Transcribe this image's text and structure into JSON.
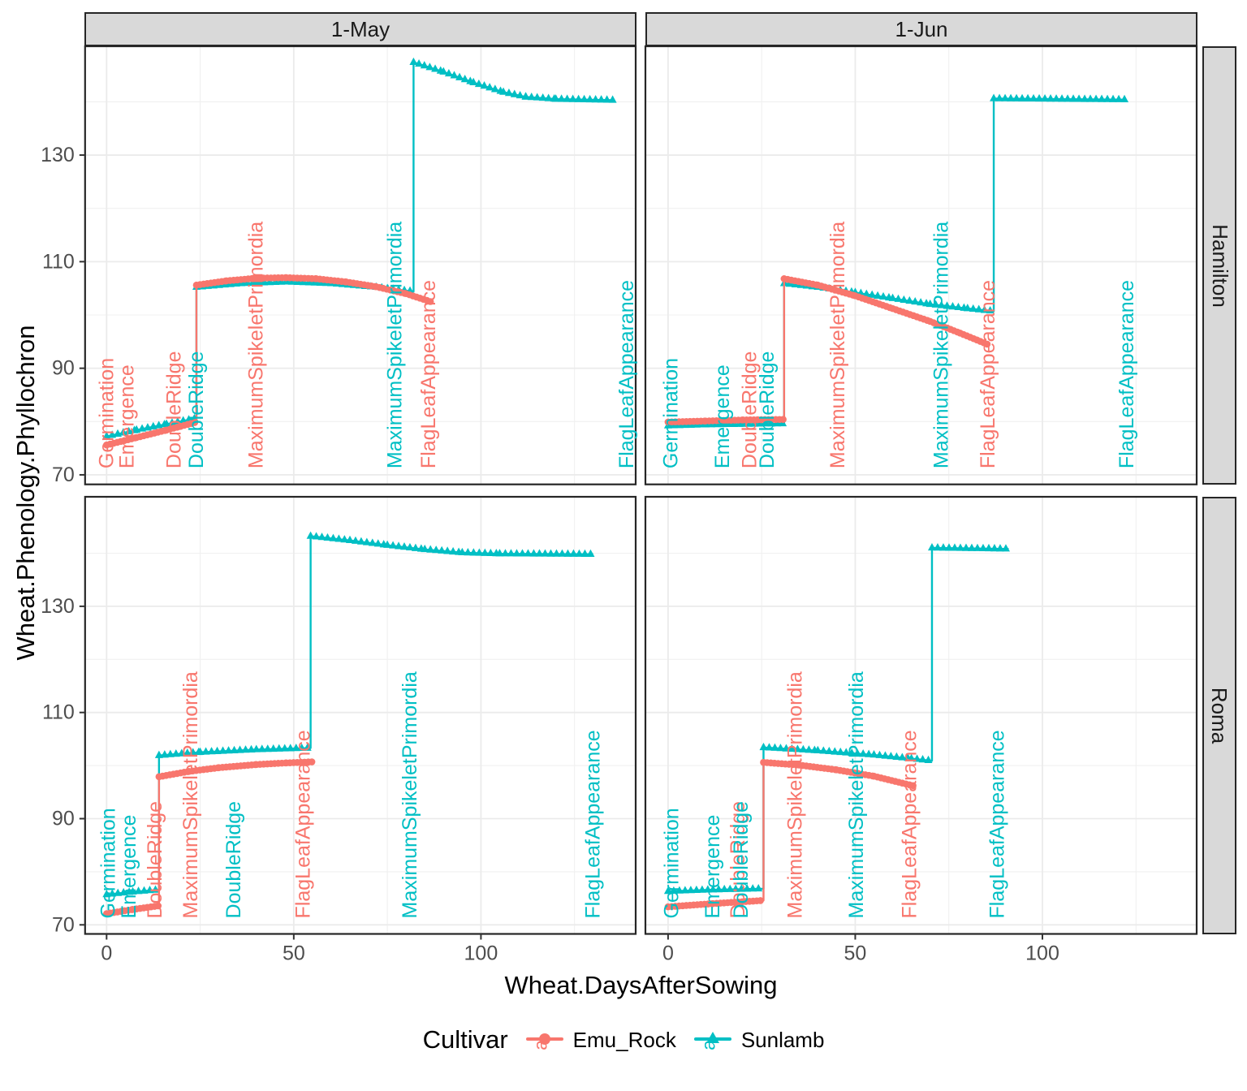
{
  "chart_data": {
    "type": "line",
    "xlabel": "Wheat.DaysAfterSowing",
    "ylabel": "Wheat.Phenology.Phyllochron",
    "facets": {
      "col_labels": [
        "1-May",
        "1-Jun"
      ],
      "row_labels": [
        "Hamilton",
        "Roma"
      ]
    },
    "axes": {
      "x_ticks": [
        0,
        50,
        100
      ],
      "x_minor": [
        25,
        75,
        125
      ],
      "y_ticks": [
        70,
        90,
        110,
        130
      ],
      "y_minor": [
        80,
        100,
        120,
        140
      ],
      "x_range": [
        -5.8,
        141.3
      ],
      "y_range": [
        68.2,
        150.5
      ],
      "grid": true
    },
    "legend": {
      "title": "Cultivar",
      "key_char": "a",
      "entries": [
        {
          "name": "Emu_Rock",
          "color": "#F8766D",
          "marker": "circle"
        },
        {
          "name": "Sunlamb",
          "color": "#00BFC4",
          "marker": "triangle"
        }
      ]
    },
    "panels": [
      {
        "id": "hamilton-1-may",
        "col": 0,
        "row": 0,
        "series": [
          {
            "cultivar": "Sunlamb",
            "points": [
              [
                0,
                77.2
              ],
              [
                8,
                78.4
              ],
              [
                16,
                79.5
              ],
              [
                24,
                80.6
              ],
              [
                24,
                105.2
              ],
              [
                36,
                105.9
              ],
              [
                48,
                106.2
              ],
              [
                60,
                105.9
              ],
              [
                72,
                105.2
              ],
              [
                82,
                104.4
              ],
              [
                82,
                147.4
              ],
              [
                90,
                145.6
              ],
              [
                98,
                143.6
              ],
              [
                106,
                141.8
              ],
              [
                112,
                140.9
              ],
              [
                120,
                140.5
              ],
              [
                135.5,
                140.3
              ]
            ]
          },
          {
            "cultivar": "Emu_Rock",
            "points": [
              [
                0,
                75.6
              ],
              [
                8,
                77.0
              ],
              [
                16,
                78.4
              ],
              [
                24,
                79.9
              ],
              [
                24,
                105.6
              ],
              [
                32,
                106.4
              ],
              [
                40,
                106.9
              ],
              [
                48,
                107.0
              ],
              [
                56,
                106.8
              ],
              [
                64,
                106.2
              ],
              [
                72,
                105.3
              ],
              [
                80,
                104.0
              ],
              [
                87,
                102.4
              ]
            ]
          }
        ],
        "stage_labels": [
          {
            "text": "Germination",
            "cultivar": "Emu_Rock",
            "day": 0
          },
          {
            "text": "Emergence",
            "cultivar": "Emu_Rock",
            "day": 5.5
          },
          {
            "text": "DoubleRidge",
            "cultivar": "Emu_Rock",
            "day": 18
          },
          {
            "text": "DoubleRidge",
            "cultivar": "Sunlamb",
            "day": 24
          },
          {
            "text": "MaximumSpikeletPrimordia",
            "cultivar": "Emu_Rock",
            "day": 40
          },
          {
            "text": "MaximumSpikeletPrimordia",
            "cultivar": "Sunlamb",
            "day": 77
          },
          {
            "text": "FlagLeafAppearance",
            "cultivar": "Emu_Rock",
            "day": 86
          },
          {
            "text": "FlagLeafAppearance",
            "cultivar": "Sunlamb",
            "day": 139
          }
        ]
      },
      {
        "id": "hamilton-1-jun",
        "col": 1,
        "row": 0,
        "series": [
          {
            "cultivar": "Sunlamb",
            "points": [
              [
                0,
                79.2
              ],
              [
                10,
                79.4
              ],
              [
                20,
                79.5
              ],
              [
                31,
                79.6
              ],
              [
                31,
                105.9
              ],
              [
                40,
                105.2
              ],
              [
                50,
                104.2
              ],
              [
                60,
                103.1
              ],
              [
                70,
                102.0
              ],
              [
                80,
                101.2
              ],
              [
                87,
                100.7
              ],
              [
                87,
                140.6
              ],
              [
                122,
                140.4
              ]
            ]
          },
          {
            "cultivar": "Emu_Rock",
            "points": [
              [
                0,
                79.9
              ],
              [
                10,
                80.1
              ],
              [
                20,
                80.3
              ],
              [
                31,
                80.4
              ],
              [
                31,
                106.8
              ],
              [
                40,
                105.6
              ],
              [
                50,
                103.6
              ],
              [
                60,
                101.2
              ],
              [
                70,
                98.8
              ],
              [
                78,
                96.6
              ],
              [
                86,
                94.3
              ]
            ]
          }
        ],
        "stage_labels": [
          {
            "text": "Germination",
            "cultivar": "Sunlamb",
            "day": 0.8
          },
          {
            "text": "Emergence",
            "cultivar": "Sunlamb",
            "day": 14.5
          },
          {
            "text": "DoubleRidge",
            "cultivar": "Emu_Rock",
            "day": 21.8
          },
          {
            "text": "DoubleRidge",
            "cultivar": "Sunlamb",
            "day": 26.5
          },
          {
            "text": "MaximumSpikeletPrimordia",
            "cultivar": "Emu_Rock",
            "day": 45.3
          },
          {
            "text": "MaximumSpikeletPrimordia",
            "cultivar": "Sunlamb",
            "day": 73
          },
          {
            "text": "FlagLeafAppearance",
            "cultivar": "Emu_Rock",
            "day": 85.5
          },
          {
            "text": "FlagLeafAppearance",
            "cultivar": "Sunlamb",
            "day": 122.6
          }
        ]
      },
      {
        "id": "roma-1-may",
        "col": 0,
        "row": 1,
        "series": [
          {
            "cultivar": "Sunlamb",
            "points": [
              [
                0,
                75.7
              ],
              [
                7,
                76.2
              ],
              [
                14,
                76.6
              ],
              [
                14,
                101.9
              ],
              [
                25,
                102.5
              ],
              [
                40,
                103.0
              ],
              [
                54.5,
                103.3
              ],
              [
                54.5,
                143.2
              ],
              [
                65,
                142.4
              ],
              [
                75,
                141.5
              ],
              [
                85,
                140.7
              ],
              [
                95,
                140.1
              ],
              [
                105,
                139.9
              ],
              [
                130,
                139.8
              ]
            ]
          },
          {
            "cultivar": "Emu_Rock",
            "points": [
              [
                0,
                72.1
              ],
              [
                7,
                72.9
              ],
              [
                14,
                73.6
              ],
              [
                14,
                97.9
              ],
              [
                22,
                98.9
              ],
              [
                30,
                99.6
              ],
              [
                40,
                100.2
              ],
              [
                48,
                100.5
              ],
              [
                55,
                100.7
              ]
            ]
          }
        ],
        "stage_labels": [
          {
            "text": "Germination",
            "cultivar": "Sunlamb",
            "day": 0.5
          },
          {
            "text": "Emergence",
            "cultivar": "Sunlamb",
            "day": 6
          },
          {
            "text": "DoubleRidge",
            "cultivar": "Emu_Rock",
            "day": 13
          },
          {
            "text": "MaximumSpikeletPrimordia",
            "cultivar": "Emu_Rock",
            "day": 22.5
          },
          {
            "text": "DoubleRidge",
            "cultivar": "Sunlamb",
            "day": 34
          },
          {
            "text": "FlagLeafAppearance",
            "cultivar": "Emu_Rock",
            "day": 52.5
          },
          {
            "text": "MaximumSpikeletPrimordia",
            "cultivar": "Sunlamb",
            "day": 81
          },
          {
            "text": "FlagLeafAppearance",
            "cultivar": "Sunlamb",
            "day": 130
          }
        ]
      },
      {
        "id": "roma-1-jun",
        "col": 1,
        "row": 1,
        "series": [
          {
            "cultivar": "Sunlamb",
            "points": [
              [
                0,
                76.3
              ],
              [
                12,
                76.6
              ],
              [
                25.5,
                76.8
              ],
              [
                25.5,
                103.4
              ],
              [
                40,
                102.8
              ],
              [
                55,
                102.0
              ],
              [
                65,
                101.3
              ],
              [
                70.5,
                100.9
              ],
              [
                70.5,
                141.0
              ],
              [
                91,
                140.8
              ]
            ]
          },
          {
            "cultivar": "Emu_Rock",
            "points": [
              [
                0,
                73.4
              ],
              [
                12,
                74.0
              ],
              [
                25.5,
                74.6
              ],
              [
                25.5,
                100.6
              ],
              [
                35,
                100.1
              ],
              [
                45,
                99.2
              ],
              [
                55,
                98.0
              ],
              [
                65.5,
                96.2
              ]
            ]
          }
        ],
        "stage_labels": [
          {
            "text": "Germination",
            "cultivar": "Sunlamb",
            "day": 1
          },
          {
            "text": "Emergence",
            "cultivar": "Sunlamb",
            "day": 12
          },
          {
            "text": "DoubleRidge",
            "cultivar": "Emu_Rock",
            "day": 18.7
          },
          {
            "text": "DoubleRidge",
            "cultivar": "Sunlamb",
            "day": 19.5
          },
          {
            "text": "MaximumSpikeletPrimordia",
            "cultivar": "Emu_Rock",
            "day": 34
          },
          {
            "text": "MaximumSpikeletPrimordia",
            "cultivar": "Sunlamb",
            "day": 50.3
          },
          {
            "text": "FlagLeafAppearance",
            "cultivar": "Emu_Rock",
            "day": 64.5
          },
          {
            "text": "FlagLeafAppearance",
            "cultivar": "Sunlamb",
            "day": 88
          }
        ]
      }
    ],
    "style_colors": {
      "emu_rock": "#F8766D",
      "sunlamb": "#00BFC4",
      "grid_major": "#EBEBEB",
      "grid_minor": "#F0F0F0",
      "strip_bg": "#D9D9D9",
      "panel_border": "#262626",
      "tick_label": "#4D4D4D"
    },
    "stage_label_baseline_value": 71.2
  }
}
